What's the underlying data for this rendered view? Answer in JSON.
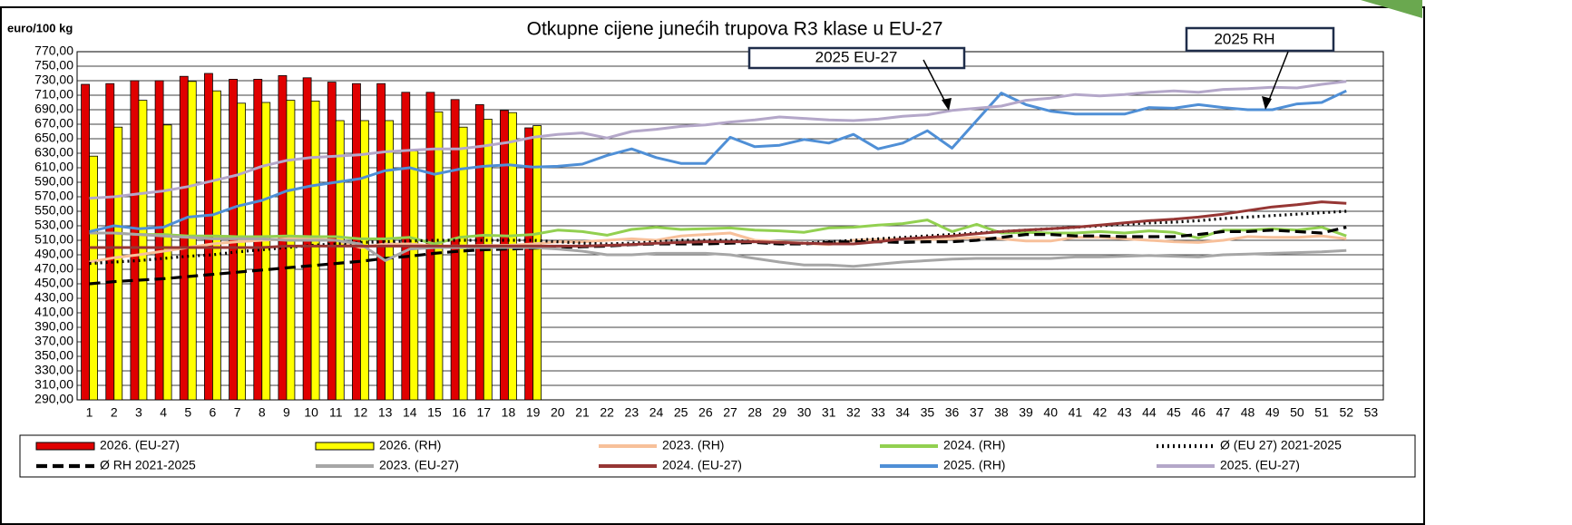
{
  "chart_data": {
    "type": "combo",
    "title": "Otkupne cijene junećih trupova R3 klase u EU-27",
    "y_label": "euro/100 kg",
    "annotations": [
      "2025 EU-27",
      "2025 RH"
    ],
    "categories": [
      "1",
      "2",
      "3",
      "4",
      "5",
      "6",
      "7",
      "8",
      "9",
      "10",
      "11",
      "12",
      "13",
      "14",
      "15",
      "16",
      "17",
      "18",
      "19",
      "20",
      "21",
      "22",
      "23",
      "24",
      "25",
      "26",
      "27",
      "28",
      "29",
      "30",
      "31",
      "32",
      "33",
      "34",
      "35",
      "36",
      "37",
      "38",
      "39",
      "40",
      "41",
      "42",
      "43",
      "44",
      "45",
      "46",
      "47",
      "48",
      "49",
      "50",
      "51",
      "52",
      "53"
    ],
    "ylim": [
      290,
      770
    ],
    "yticks": [
      {
        "value": 290,
        "label": "290,00"
      },
      {
        "value": 310,
        "label": "310,00"
      },
      {
        "value": 330,
        "label": "330,00"
      },
      {
        "value": 350,
        "label": "350,00"
      },
      {
        "value": 370,
        "label": "370,00"
      },
      {
        "value": 390,
        "label": "390,00"
      },
      {
        "value": 410,
        "label": "410,00"
      },
      {
        "value": 430,
        "label": "430,00"
      },
      {
        "value": 450,
        "label": "450,00"
      },
      {
        "value": 470,
        "label": "470,00"
      },
      {
        "value": 490,
        "label": "490,00"
      },
      {
        "value": 510,
        "label": "510,00"
      },
      {
        "value": 530,
        "label": "530,00"
      },
      {
        "value": 550,
        "label": "550,00"
      },
      {
        "value": 570,
        "label": "570,00"
      },
      {
        "value": 590,
        "label": "590,00"
      },
      {
        "value": 610,
        "label": "610,00"
      },
      {
        "value": 630,
        "label": "630,00"
      },
      {
        "value": 650,
        "label": "650,00"
      },
      {
        "value": 670,
        "label": "670,00"
      },
      {
        "value": 690,
        "label": "690,00"
      },
      {
        "value": 710,
        "label": "710,00"
      },
      {
        "value": 730,
        "label": "730,00"
      },
      {
        "value": 750,
        "label": "750,00"
      },
      {
        "value": 770,
        "label": "770,00"
      }
    ],
    "grid": true,
    "legend": "bottom",
    "series": [
      {
        "name": "2026. (EU-27)",
        "type": "bar",
        "color": "#e00000",
        "values": [
          725,
          726,
          730,
          730,
          736,
          740,
          732,
          732,
          737,
          734,
          728,
          726,
          726,
          714,
          714,
          704,
          697,
          689,
          665,
          null,
          null,
          null,
          null,
          null,
          null,
          null,
          null,
          null,
          null,
          null,
          null,
          null,
          null,
          null,
          null,
          null,
          null,
          null,
          null,
          null,
          null,
          null,
          null,
          null,
          null,
          null,
          null,
          null,
          null,
          null,
          null,
          null,
          null
        ]
      },
      {
        "name": "2026. (RH)",
        "type": "bar",
        "color": "#ffff00",
        "values": [
          626,
          666,
          703,
          669,
          729,
          716,
          699,
          700,
          703,
          702,
          675,
          675,
          675,
          633,
          687,
          666,
          677,
          686,
          668,
          null,
          null,
          null,
          null,
          null,
          null,
          null,
          null,
          null,
          null,
          null,
          null,
          null,
          null,
          null,
          null,
          null,
          null,
          null,
          null,
          null,
          null,
          null,
          null,
          null,
          null,
          null,
          null,
          null,
          null,
          null,
          null,
          null,
          null
        ]
      },
      {
        "name": "2023. (RH)",
        "type": "line",
        "color": "#f7c09a",
        "values": [
          480,
          486,
          490,
          495,
          500,
          505,
          508,
          510,
          512,
          512,
          510,
          500,
          505,
          505,
          502,
          502,
          503,
          503,
          505,
          508,
          508,
          510,
          512,
          510,
          516,
          518,
          520,
          510,
          508,
          506,
          504,
          510,
          511,
          512,
          511,
          512,
          514,
          512,
          509,
          509,
          514,
          514,
          512,
          510,
          508,
          507,
          510,
          515,
          514,
          514,
          516,
          512,
          null
        ]
      },
      {
        "name": "2024. (RH)",
        "type": "line",
        "color": "#92d050",
        "values": [
          520,
          520,
          518,
          518,
          516,
          516,
          515,
          515,
          516,
          515,
          515,
          512,
          512,
          514,
          505,
          514,
          517,
          516,
          518,
          524,
          522,
          517,
          525,
          528,
          525,
          526,
          527,
          524,
          523,
          521,
          527,
          528,
          531,
          533,
          538,
          522,
          532,
          520,
          521,
          520,
          520,
          522,
          520,
          523,
          521,
          513,
          524,
          524,
          526,
          524,
          528,
          516,
          null
        ]
      },
      {
        "name": "Ø (EU 27) 2021-2025",
        "type": "line",
        "color": "#000000",
        "line_style": "dotted",
        "values": [
          478,
          480,
          482,
          485,
          488,
          490,
          494,
          497,
          500,
          503,
          505,
          507,
          508,
          509,
          510,
          510,
          510,
          510,
          510,
          508,
          506,
          505,
          506,
          508,
          510,
          510,
          510,
          508,
          506,
          506,
          508,
          510,
          512,
          514,
          516,
          518,
          520,
          522,
          524,
          526,
          528,
          530,
          532,
          534,
          535,
          537,
          540,
          542,
          544,
          546,
          548,
          550,
          null
        ]
      },
      {
        "name": "Ø RH 2021-2025",
        "type": "line",
        "color": "#000000",
        "line_style": "dashed",
        "values": [
          450,
          453,
          455,
          457,
          460,
          463,
          466,
          469,
          472,
          475,
          478,
          481,
          485,
          488,
          492,
          495,
          497,
          498,
          499,
          500,
          501,
          502,
          504,
          505,
          505,
          505,
          506,
          507,
          505,
          505,
          507,
          508,
          508,
          507,
          508,
          508,
          510,
          514,
          518,
          518,
          516,
          516,
          515,
          515,
          515,
          518,
          522,
          522,
          524,
          522,
          520,
          528,
          null
        ]
      },
      {
        "name": "2023. (EU-27)",
        "type": "line",
        "color": "#a6a6a6",
        "values": [
          520,
          520,
          518,
          516,
          514,
          512,
          512,
          512,
          510,
          510,
          510,
          505,
          482,
          498,
          500,
          500,
          500,
          500,
          500,
          498,
          495,
          490,
          490,
          492,
          492,
          492,
          490,
          485,
          480,
          476,
          476,
          474,
          477,
          480,
          482,
          484,
          485,
          485,
          485,
          485,
          487,
          487,
          488,
          489,
          488,
          487,
          490,
          491,
          492,
          493,
          494,
          496,
          null
        ]
      },
      {
        "name": "2024. (EU-27)",
        "type": "line",
        "color": "#963634",
        "values": [
          500,
          500,
          500,
          500,
          500,
          500,
          500,
          500,
          502,
          502,
          502,
          502,
          502,
          502,
          502,
          502,
          502,
          502,
          502,
          502,
          502,
          503,
          504,
          506,
          507,
          508,
          508,
          508,
          507,
          506,
          505,
          505,
          508,
          512,
          514,
          516,
          519,
          522,
          524,
          526,
          528,
          531,
          534,
          537,
          539,
          542,
          546,
          551,
          556,
          559,
          563,
          561,
          null
        ]
      },
      {
        "name": "2025. (RH)",
        "type": "line",
        "color": "#4f8fd6",
        "values": [
          522,
          530,
          526,
          528,
          542,
          545,
          557,
          565,
          578,
          585,
          590,
          595,
          606,
          610,
          601,
          608,
          612,
          614,
          611,
          612,
          615,
          627,
          636,
          624,
          616,
          616,
          652,
          639,
          641,
          649,
          644,
          656,
          636,
          644,
          661,
          637,
          675,
          713,
          697,
          688,
          684,
          684,
          684,
          693,
          692,
          697,
          693,
          690,
          690,
          698,
          700,
          716,
          null
        ]
      },
      {
        "name": "2025. (EU-27)",
        "type": "line",
        "color": "#b4a7c9",
        "values": [
          568,
          570,
          574,
          578,
          584,
          592,
          600,
          612,
          620,
          624,
          626,
          628,
          632,
          634,
          636,
          636,
          640,
          645,
          652,
          656,
          658,
          651,
          660,
          663,
          667,
          669,
          673,
          676,
          680,
          678,
          676,
          675,
          677,
          681,
          683,
          689,
          692,
          695,
          703,
          706,
          711,
          709,
          711,
          714,
          716,
          714,
          718,
          719,
          721,
          720,
          725,
          729,
          null
        ]
      }
    ]
  }
}
